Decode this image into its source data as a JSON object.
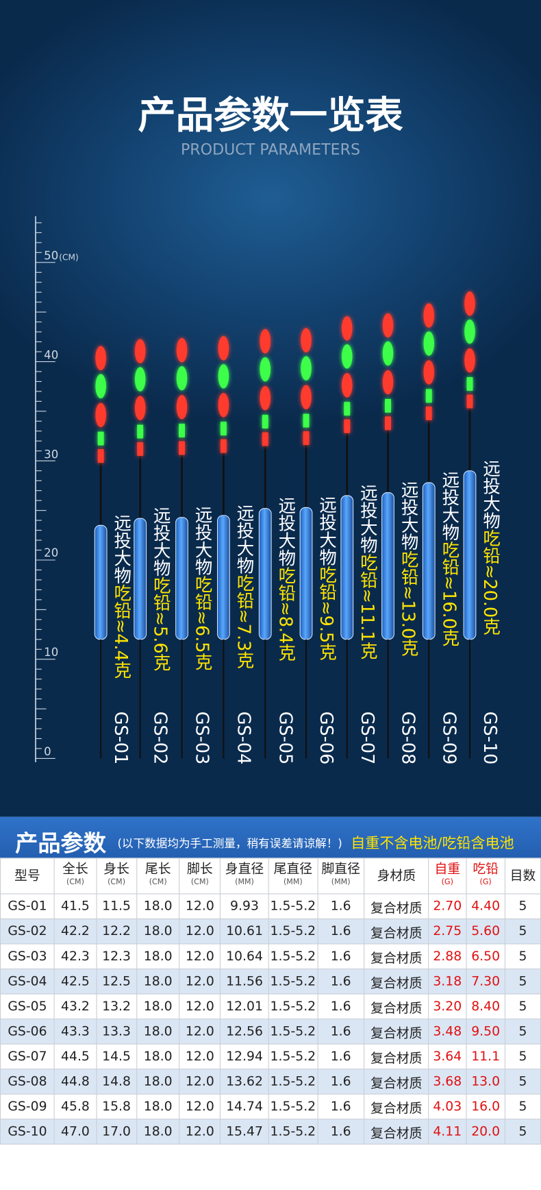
{
  "header": {
    "title": "产品参数一览表",
    "subtitle": "PRODUCT PARAMETERS"
  },
  "ruler": {
    "labels": [
      "0",
      "10",
      "20",
      "30",
      "40",
      "50"
    ],
    "unit": "(CM)"
  },
  "floats": [
    {
      "name": "远投大物",
      "load": "吃铅≈4.4克",
      "model": "GS-01"
    },
    {
      "name": "远投大物",
      "load": "吃铅≈5.6克",
      "model": "GS-02"
    },
    {
      "name": "远投大物",
      "load": "吃铅≈6.5克",
      "model": "GS-03"
    },
    {
      "name": "远投大物",
      "load": "吃铅≈7.3克",
      "model": "GS-04"
    },
    {
      "name": "远投大物",
      "load": "吃铅≈8.4克",
      "model": "GS-05"
    },
    {
      "name": "远投大物",
      "load": "吃铅≈9.5克",
      "model": "GS-06"
    },
    {
      "name": "远投大物",
      "load": "吃铅≈11.1克",
      "model": "GS-07"
    },
    {
      "name": "远投大物",
      "load": "吃铅≈13.0克",
      "model": "GS-08"
    },
    {
      "name": "远投大物",
      "load": "吃铅≈16.0克",
      "model": "GS-09"
    },
    {
      "name": "远投大物",
      "load": "吃铅≈20.0克",
      "model": "GS-10"
    }
  ],
  "table": {
    "title": "产品参数",
    "note": "(以下数据均为手工测量，稍有误差请谅解！)",
    "remark": "自重不含电池/吃铅含电池",
    "columns": [
      {
        "label": "型号"
      },
      {
        "label": "全长",
        "unit": "(CM)"
      },
      {
        "label": "身长",
        "unit": "(CM)"
      },
      {
        "label": "尾长",
        "unit": "(CM)"
      },
      {
        "label": "脚长",
        "unit": "(CM)"
      },
      {
        "label": "身直径",
        "unit": "(MM)"
      },
      {
        "label": "尾直径",
        "unit": "(MM)"
      },
      {
        "label": "脚直径",
        "unit": "(MM)"
      },
      {
        "label": "身材质"
      },
      {
        "label": "自重",
        "unit": "(G)"
      },
      {
        "label": "吃铅",
        "unit": "(G)"
      },
      {
        "label": "目数"
      }
    ],
    "rows": [
      [
        "GS-01",
        "41.5",
        "11.5",
        "18.0",
        "12.0",
        "9.93",
        "1.5-5.2",
        "1.6",
        "复合材质",
        "2.70",
        "4.40",
        "5"
      ],
      [
        "GS-02",
        "42.2",
        "12.2",
        "18.0",
        "12.0",
        "10.61",
        "1.5-5.2",
        "1.6",
        "复合材质",
        "2.75",
        "5.60",
        "5"
      ],
      [
        "GS-03",
        "42.3",
        "12.3",
        "18.0",
        "12.0",
        "10.64",
        "1.5-5.2",
        "1.6",
        "复合材质",
        "2.88",
        "6.50",
        "5"
      ],
      [
        "GS-04",
        "42.5",
        "12.5",
        "18.0",
        "12.0",
        "11.56",
        "1.5-5.2",
        "1.6",
        "复合材质",
        "3.18",
        "7.30",
        "5"
      ],
      [
        "GS-05",
        "43.2",
        "13.2",
        "18.0",
        "12.0",
        "12.01",
        "1.5-5.2",
        "1.6",
        "复合材质",
        "3.20",
        "8.40",
        "5"
      ],
      [
        "GS-06",
        "43.3",
        "13.3",
        "18.0",
        "12.0",
        "12.56",
        "1.5-5.2",
        "1.6",
        "复合材质",
        "3.48",
        "9.50",
        "5"
      ],
      [
        "GS-07",
        "44.5",
        "14.5",
        "18.0",
        "12.0",
        "12.94",
        "1.5-5.2",
        "1.6",
        "复合材质",
        "3.64",
        "11.1",
        "5"
      ],
      [
        "GS-08",
        "44.8",
        "14.8",
        "18.0",
        "12.0",
        "13.62",
        "1.5-5.2",
        "1.6",
        "复合材质",
        "3.68",
        "13.0",
        "5"
      ],
      [
        "GS-09",
        "45.8",
        "15.8",
        "18.0",
        "12.0",
        "14.74",
        "1.5-5.2",
        "1.6",
        "复合材质",
        "4.03",
        "16.0",
        "5"
      ],
      [
        "GS-10",
        "47.0",
        "17.0",
        "18.0",
        "12.0",
        "15.47",
        "1.5-5.2",
        "1.6",
        "复合材质",
        "4.11",
        "20.0",
        "5"
      ]
    ]
  }
}
